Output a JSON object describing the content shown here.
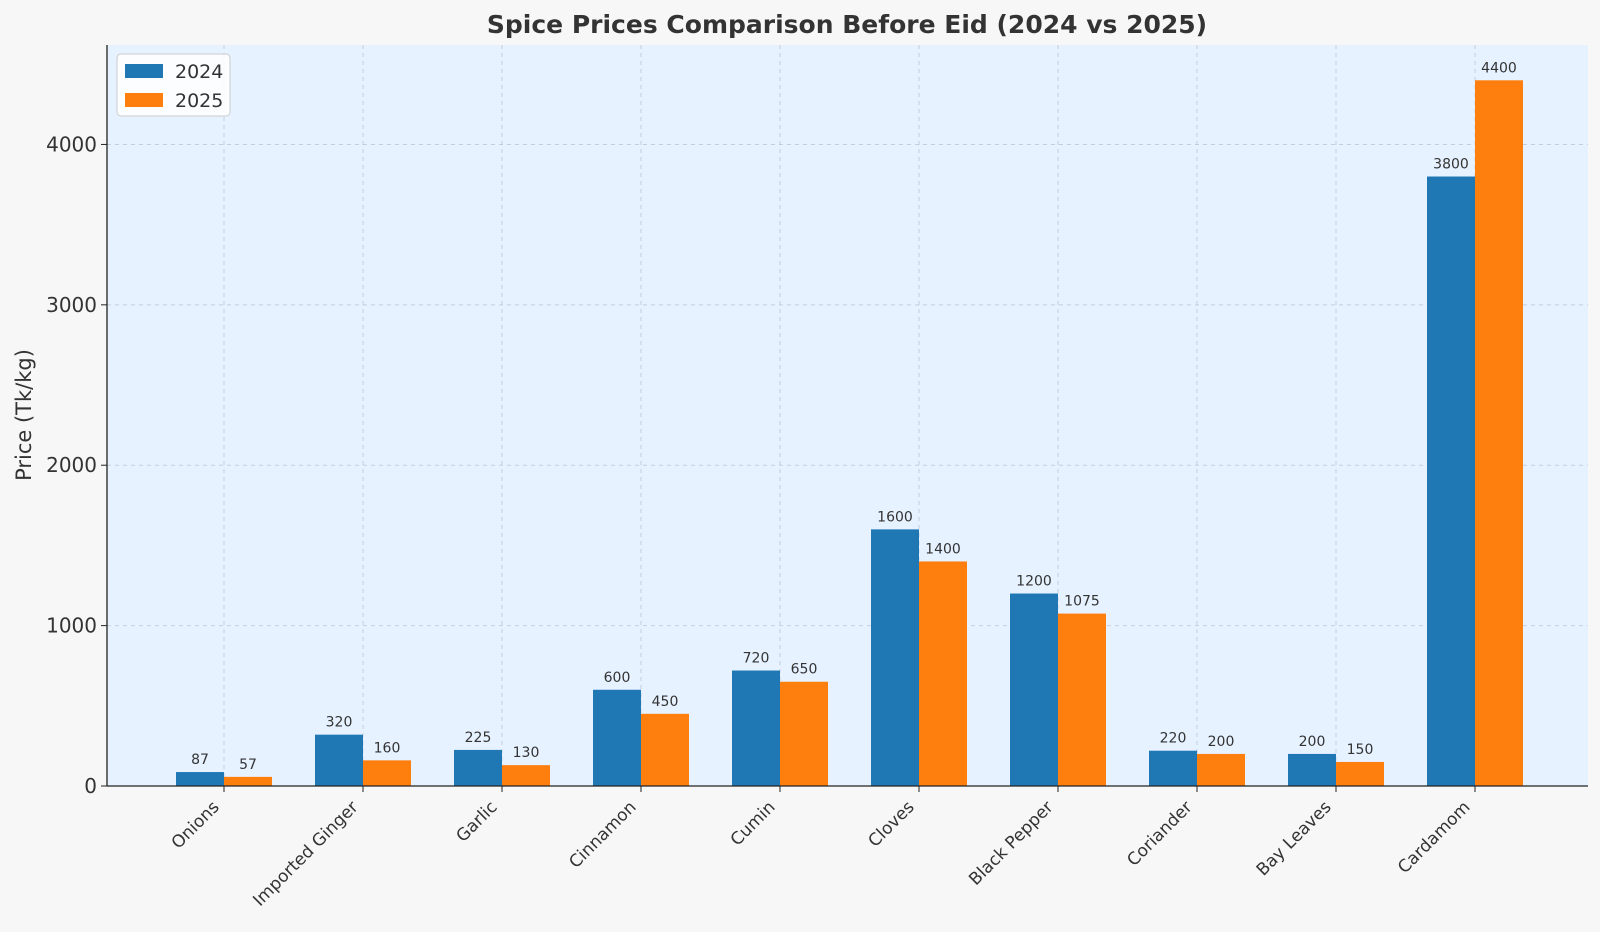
{
  "colors": {
    "figure_bg": "#f7f7f7",
    "plot_bg": "#e6f2ff",
    "grid": "#b0b8c0",
    "axis": "#222222",
    "text": "#333333",
    "series": [
      "#1f77b4",
      "#ff7f0e"
    ]
  },
  "chart_data": {
    "type": "bar",
    "title": "Spice Prices Comparison Before Eid (2024 vs 2025)",
    "xlabel": "",
    "ylabel": "Price (Tk/kg)",
    "categories": [
      "Onions",
      "Imported Ginger",
      "Garlic",
      "Cinnamon",
      "Cumin",
      "Cloves",
      "Black Pepper",
      "Coriander",
      "Bay Leaves",
      "Cardamom"
    ],
    "series": [
      {
        "name": "2024",
        "values": [
          87,
          320,
          225,
          600,
          720,
          1600,
          1200,
          220,
          200,
          3800
        ]
      },
      {
        "name": "2025",
        "values": [
          57,
          160,
          130,
          450,
          650,
          1400,
          1075,
          200,
          150,
          4400
        ]
      }
    ],
    "ylim": [
      0,
      4620
    ],
    "yticks": [
      0,
      1000,
      2000,
      3000,
      4000
    ],
    "grid": true,
    "legend": "top-left",
    "data_labels": true
  }
}
